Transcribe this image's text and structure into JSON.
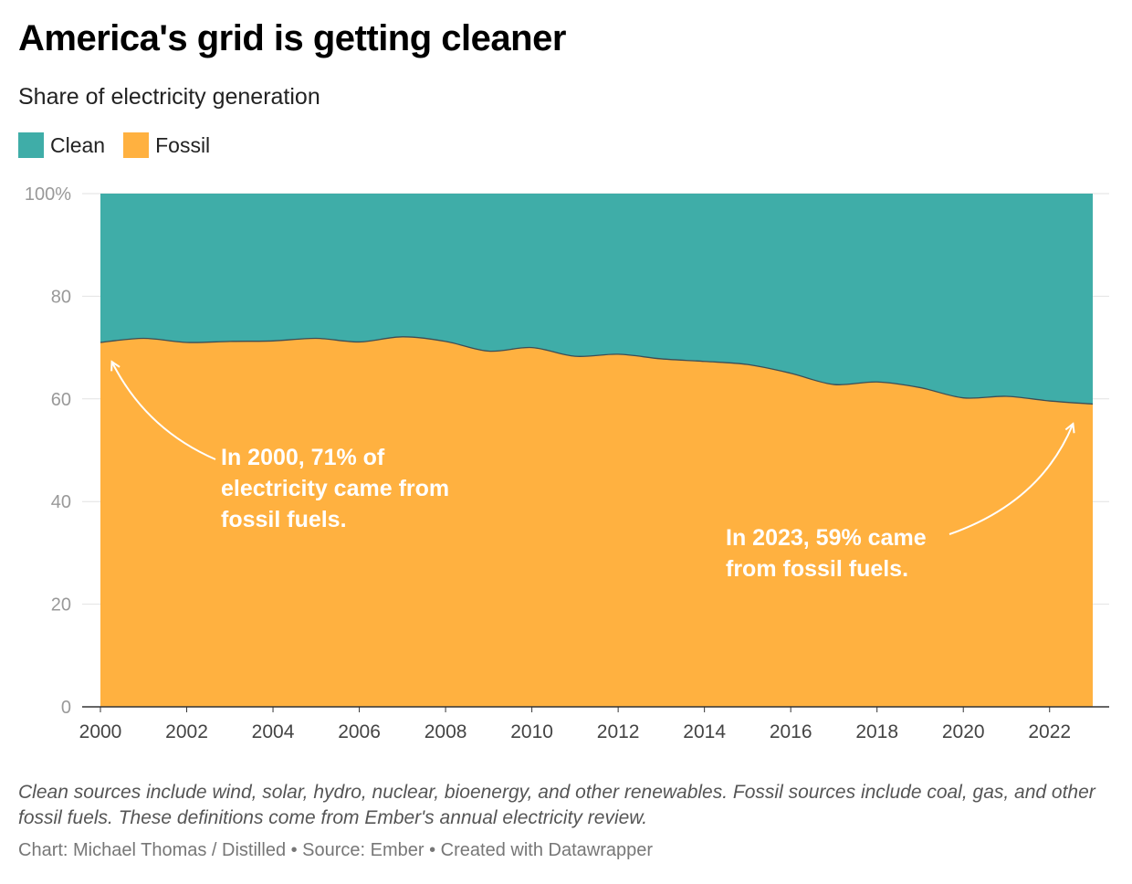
{
  "title": "America's grid is getting cleaner",
  "subtitle": "Share of electricity generation",
  "legend": [
    {
      "label": "Clean",
      "color": "#3fada8"
    },
    {
      "label": "Fossil",
      "color": "#ffb140"
    }
  ],
  "chart_data": {
    "type": "area",
    "stacked": true,
    "x": [
      2000,
      2001,
      2002,
      2003,
      2004,
      2005,
      2006,
      2007,
      2008,
      2009,
      2010,
      2011,
      2012,
      2013,
      2014,
      2015,
      2016,
      2017,
      2018,
      2019,
      2020,
      2021,
      2022,
      2023
    ],
    "series": [
      {
        "name": "Fossil",
        "color": "#ffb140",
        "values": [
          71,
          71.8,
          71,
          71.2,
          71.3,
          71.8,
          71.1,
          72.1,
          71.2,
          69.3,
          70,
          68.3,
          68.7,
          67.8,
          67.3,
          66.7,
          65,
          62.8,
          63.3,
          62.2,
          60.2,
          60.5,
          59.6,
          59
        ]
      },
      {
        "name": "Clean",
        "color": "#3fada8",
        "values": [
          29,
          28.2,
          29,
          28.8,
          28.7,
          28.2,
          28.9,
          27.9,
          28.8,
          30.7,
          30,
          31.7,
          31.3,
          32.2,
          32.7,
          33.3,
          35,
          37.2,
          36.7,
          37.8,
          39.8,
          39.5,
          40.4,
          41
        ]
      }
    ],
    "xticks": [
      "2000",
      "2002",
      "2004",
      "2006",
      "2008",
      "2010",
      "2012",
      "2014",
      "2016",
      "2018",
      "2020",
      "2022"
    ],
    "yticks": [
      "100%",
      "80",
      "60",
      "40",
      "20",
      "0"
    ],
    "ylim": [
      0,
      100
    ],
    "xlim": [
      2000,
      2023
    ],
    "grid": true,
    "legend_position": "top-left",
    "annotations": [
      {
        "lines": [
          "In 2000, 71% of",
          "electricity came from",
          "fossil fuels."
        ]
      },
      {
        "lines": [
          "In 2023, 59% came",
          "from fossil fuels."
        ]
      }
    ]
  },
  "notes": "Clean sources include wind, solar, hydro, nuclear, bioenergy, and other renewables. Fossil sources include coal, gas, and other fossil fuels. These definitions come from Ember's annual electricity review.",
  "credits": "Chart: Michael Thomas / Distilled • Source: Ember • Created with Datawrapper"
}
